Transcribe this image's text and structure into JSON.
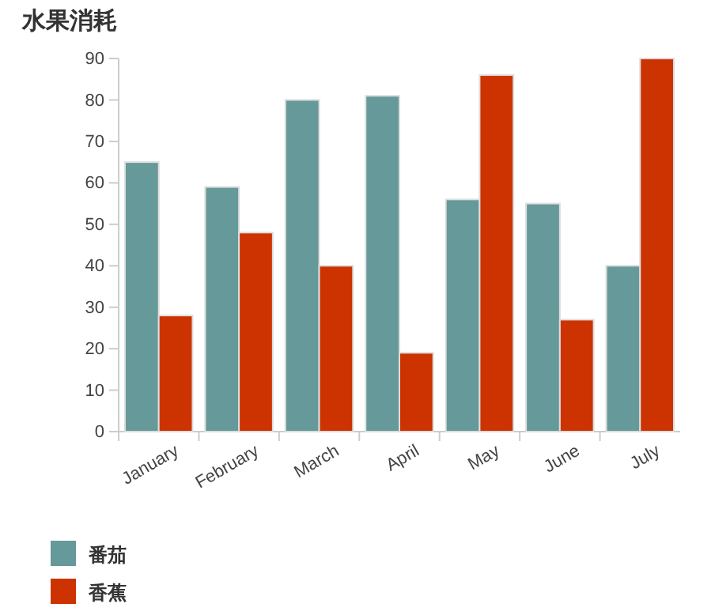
{
  "chart_data": {
    "type": "bar",
    "title": "水果消耗",
    "categories": [
      "January",
      "February",
      "March",
      "April",
      "May",
      "June",
      "July"
    ],
    "series": [
      {
        "name": "番茄",
        "color": "#669999",
        "values": [
          65,
          59,
          80,
          81,
          56,
          55,
          40
        ]
      },
      {
        "name": "香蕉",
        "color": "#cc3300",
        "values": [
          28,
          48,
          40,
          19,
          86,
          27,
          90
        ]
      }
    ],
    "ylim": [
      0,
      90
    ],
    "yticks": [
      0,
      10,
      20,
      30,
      40,
      50,
      60,
      70,
      80,
      90
    ],
    "grid": false,
    "legend": "bottom left"
  }
}
